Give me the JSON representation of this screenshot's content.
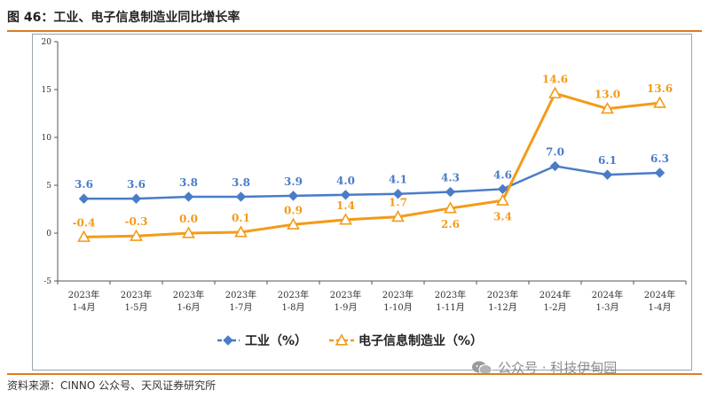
{
  "header": {
    "title": "图 46：工业、电子信息制造业同比增长率"
  },
  "footer": {
    "source": "资料来源：CINNO 公众号、天风证券研究所",
    "watermark": "公众号 · 科技伊甸园"
  },
  "colors": {
    "series1": "#4a7cc7",
    "series2": "#f39b18",
    "accent_rule": "#e07b22"
  },
  "chart_data": {
    "type": "line",
    "categories": [
      [
        "2023年",
        "1-4月"
      ],
      [
        "2023年",
        "1-5月"
      ],
      [
        "2023年",
        "1-6月"
      ],
      [
        "2023年",
        "1-7月"
      ],
      [
        "2023年",
        "1-8月"
      ],
      [
        "2023年",
        "1-9月"
      ],
      [
        "2023年",
        "1-10月"
      ],
      [
        "2023年",
        "1-11月"
      ],
      [
        "2023年",
        "1-12月"
      ],
      [
        "2024年",
        "1-2月"
      ],
      [
        "2024年",
        "1-3月"
      ],
      [
        "2024年",
        "1-4月"
      ]
    ],
    "series": [
      {
        "name": "工业（%）",
        "marker": "diamond",
        "values": [
          3.6,
          3.6,
          3.8,
          3.8,
          3.9,
          4.0,
          4.1,
          4.3,
          4.6,
          7.0,
          6.1,
          6.3
        ],
        "labels": [
          "3.6",
          "3.6",
          "3.8",
          "3.8",
          "3.9",
          "4.0",
          "4.1",
          "4.3",
          "4.6",
          "7.0",
          "6.1",
          "6.3"
        ]
      },
      {
        "name": "电子信息制造业（%）",
        "marker": "triangle",
        "values": [
          -0.4,
          -0.3,
          0.0,
          0.1,
          0.9,
          1.4,
          1.7,
          2.6,
          3.4,
          14.6,
          13.0,
          13.6
        ],
        "labels": [
          "-0.4",
          "-0.3",
          "0.0",
          "0.1",
          "0.9",
          "1.4",
          "1.7",
          "2.6",
          "3.4",
          "14.6",
          "13.0",
          "13.6"
        ]
      }
    ],
    "yticks": [
      "20",
      "15",
      "10",
      "5",
      "0",
      "-5"
    ],
    "ylim": [
      -5,
      20
    ],
    "grid": false,
    "legend": "bottom"
  }
}
